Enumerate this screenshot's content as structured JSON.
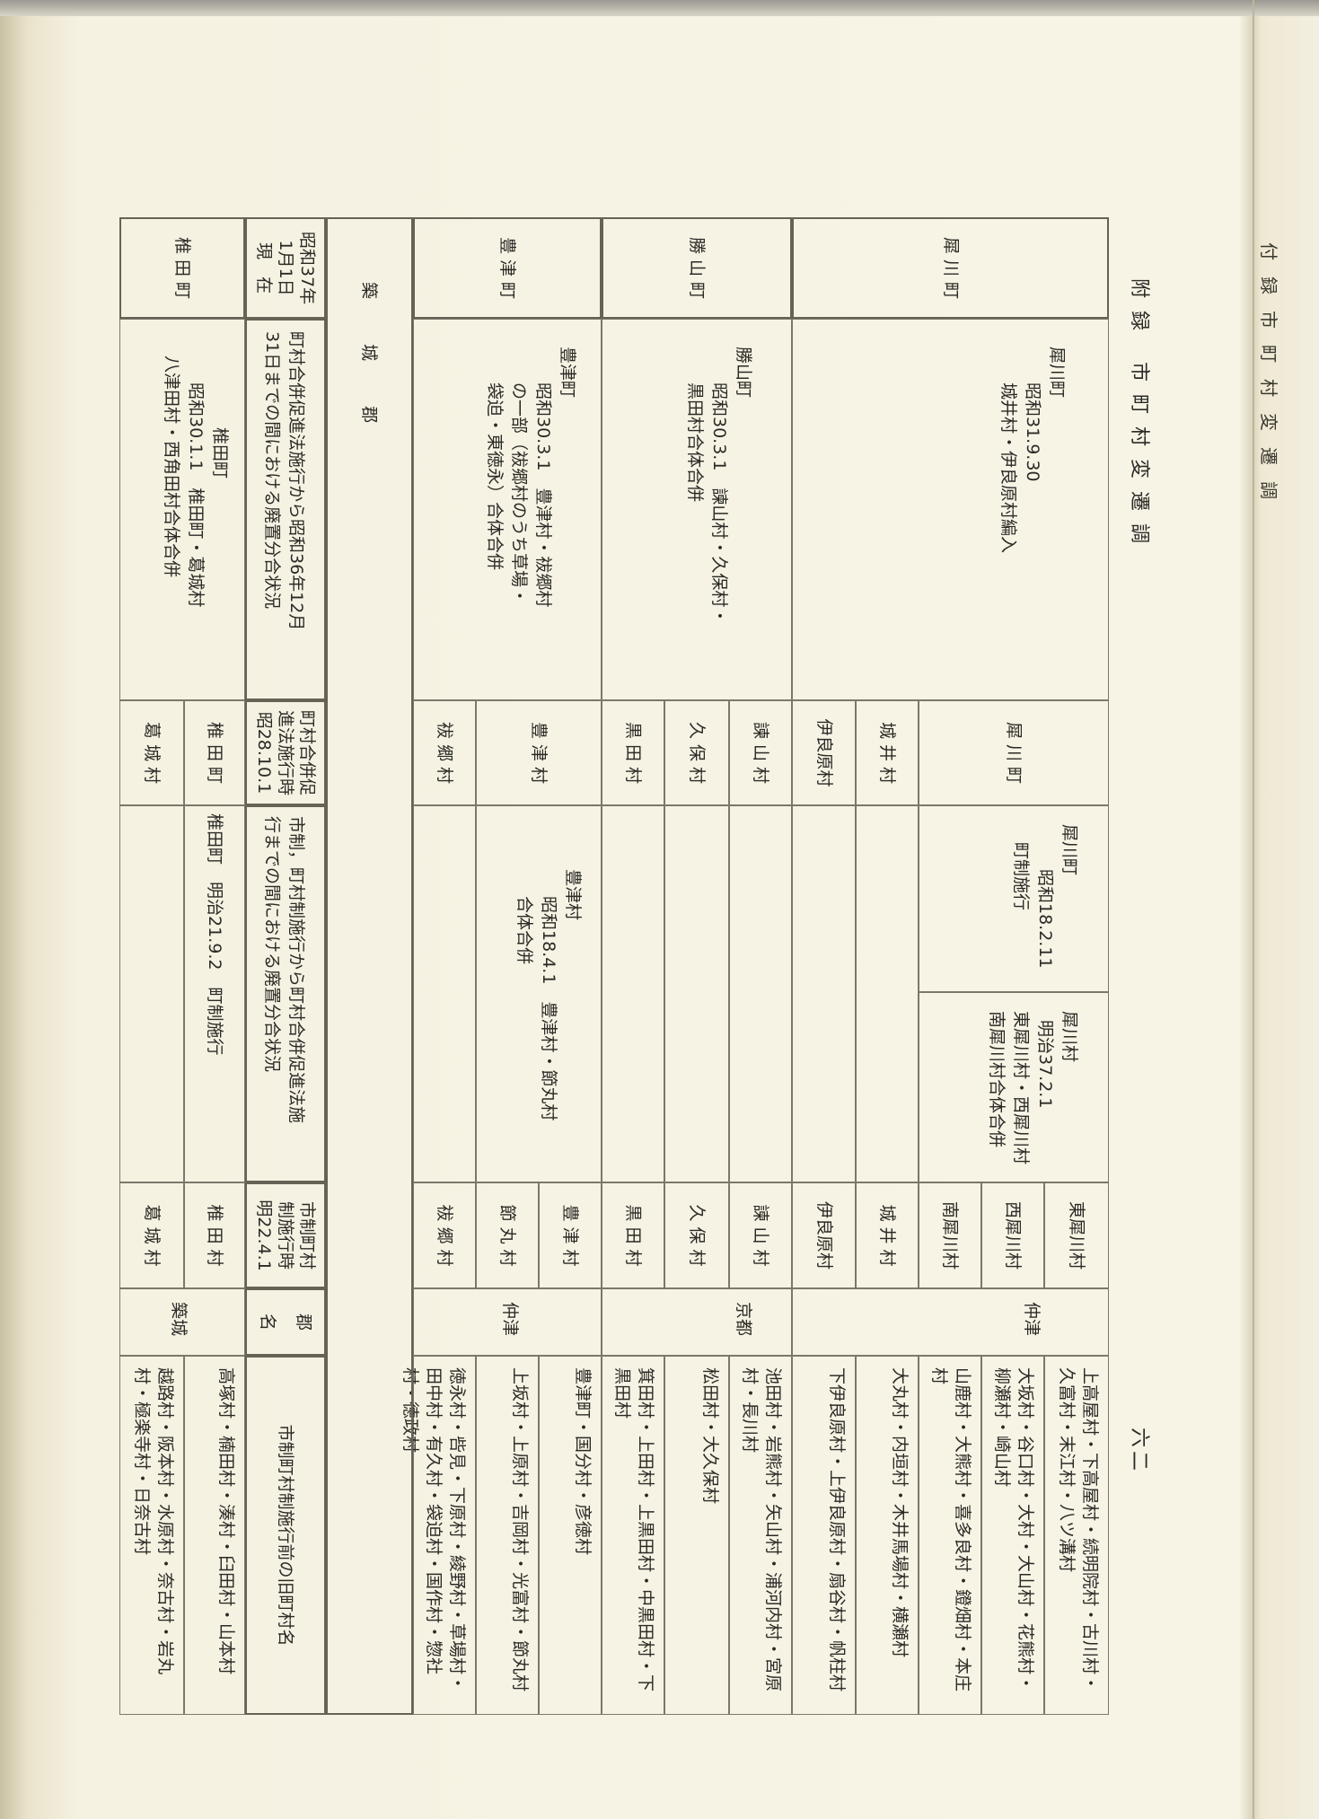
{
  "page_header": {
    "title": "附録 市町村変遷調",
    "page_number": "六二"
  },
  "adjacent_page": {
    "title": "付録市町村変遷調"
  },
  "table": {
    "headers": {
      "current": "昭和37年\n1月1日\n現　在",
      "merger_1955_1961": "町村合併促進法施行から昭和36年12月\n31日までの間における廃置分合状況",
      "at_1953": "町村合併促\n進法施行時\n昭28.10.1",
      "changes_1889_1953": "市制，町村制施行から町村合併促進法施\n行までの間における廃置分合状況",
      "at_1889": "市制町村\n制施行時\n明22.4.1",
      "district": "郡\n名",
      "old_names": "市制町村制施行前の旧町村名"
    },
    "district_label": "築 城 郡",
    "current_towns": [
      "犀 川 町",
      "勝 山 町",
      "豊 津 町",
      "椎 田 町"
    ],
    "mergers": [
      {
        "town": "犀川町",
        "lines": [
          "昭和31.9.30",
          "城井村・伊良原村編入"
        ]
      },
      {
        "town": "勝山町",
        "lines": [
          "昭和30.3.1　諫山村・久保村・",
          "黒田村合体合併"
        ]
      },
      {
        "town": "豊津町",
        "lines": [
          "昭和30.3.1　豊津村・祓郷村",
          "の一部（祓郷村のうち草場・",
          "袋迫・東徳永）合体合併"
        ]
      },
      {
        "town": "椎田町",
        "lines": [
          "昭和30.1.1　椎田町・葛城村",
          "八津田村・西角田村合体合併"
        ]
      }
    ],
    "at_1953": [
      "犀 川 町",
      "城 井 村",
      "伊良原村",
      "諫 山 村",
      "久 保 村",
      "黒 田 村",
      "豊 津 村",
      "祓 郷 村",
      "椎 田 町",
      "葛 城 村"
    ],
    "changes": [
      {
        "name": "犀川町",
        "lines": [
          "昭和18.2.11",
          "町制施行"
        ]
      },
      {
        "name": "犀川村",
        "lines": [
          "明治37.2.1",
          "東犀川村・西犀川村",
          "南犀川村合体合併"
        ]
      },
      {
        "name": "豊津村",
        "lines": [
          "昭和18.4.1　豊津村・節丸村",
          "合体合併"
        ]
      },
      {
        "name": "椎田町",
        "lines": [
          "明治21.9.2　町制施行"
        ]
      }
    ],
    "districts": [
      "仲津",
      "京都",
      "仲津",
      "築城"
    ],
    "rows": [
      {
        "village": "東犀川村",
        "old_names": "上高屋村・下高屋村・続明院村・古川村・久富村・末江村・八ツ溝村"
      },
      {
        "village": "西犀川村",
        "old_names": "大坂村・谷口村・大村・大山村・花熊村・柳瀬村・崎山村"
      },
      {
        "village": "南犀川村",
        "old_names": "山鹿村・大熊村・喜多良村・鐙畑村・本庄村"
      },
      {
        "village": "城 井 村",
        "old_names": "大丸村・内垣村・木井馬場村・横瀬村"
      },
      {
        "village": "伊良原村",
        "old_names": "下伊良原村・上伊良原村・扇谷村・帆柱村"
      },
      {
        "village": "諫 山 村",
        "old_names": "池田村・岩熊村・矢山村・浦河内村・宮原村・長川村"
      },
      {
        "village": "久 保 村",
        "old_names": "松田村・大久保村"
      },
      {
        "village": "黒 田 村",
        "old_names": "箕田村・上田村・上黒田村・中黒田村・下黒田村"
      },
      {
        "village": "豊 津 村",
        "old_names": "豊津町・国分村・彦徳村"
      },
      {
        "village": "節 丸 村",
        "old_names": "上坂村・上原村・吉岡村・光富村・節丸村"
      },
      {
        "village": "祓 郷 村",
        "old_names": "徳永村・呰見・下原村・綾野村・草場村・田中村・有久村・袋迫村・国作村・惣社村・徳政村"
      },
      {
        "village": "椎 田 村",
        "old_names": "高塚村・楠田村・湊村・臼田村・山本村"
      },
      {
        "village": "葛 城 村",
        "old_names": "越路村・阪本村・水原村・奈古村・岩丸村・極楽寺村・日奈古村"
      }
    ]
  }
}
